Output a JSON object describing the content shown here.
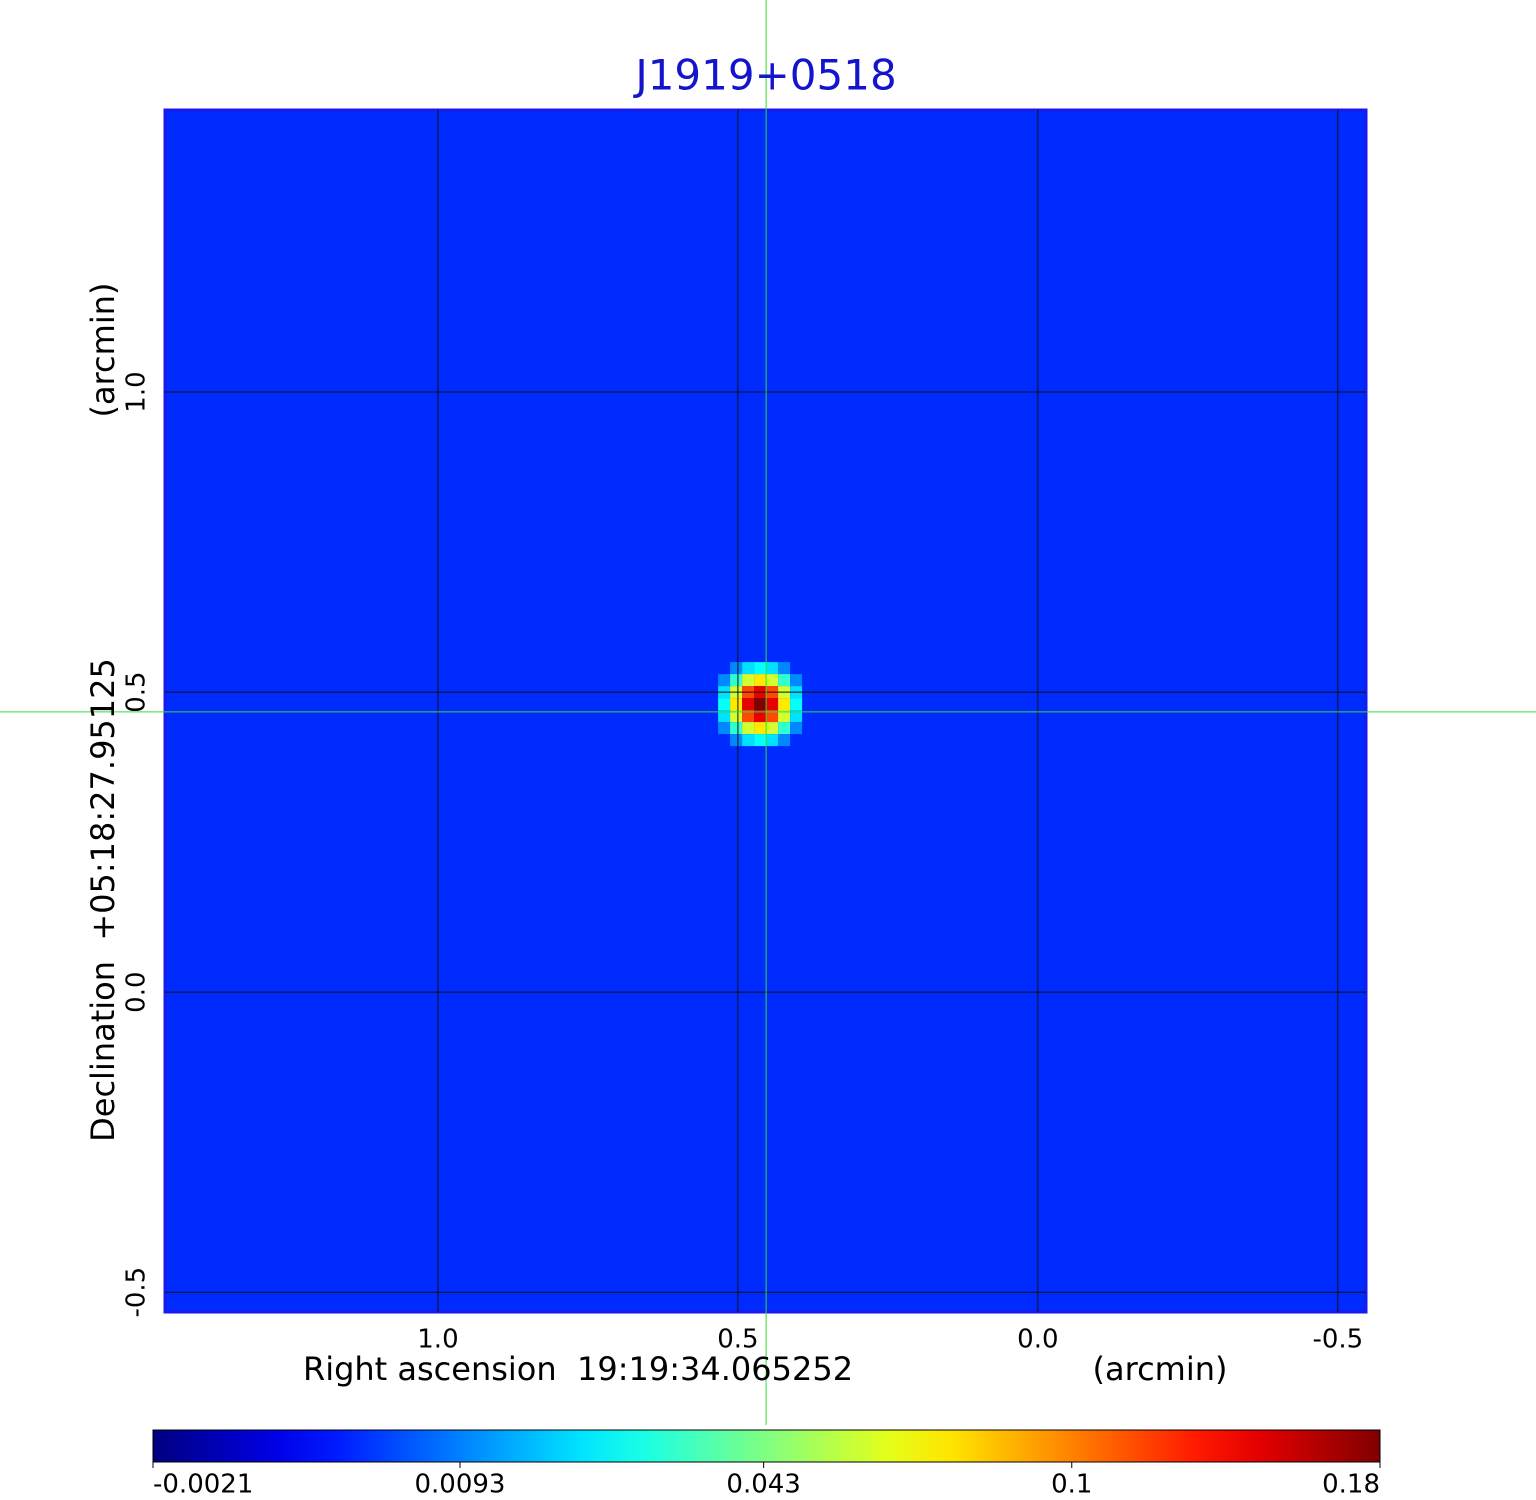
{
  "chart_data": {
    "type": "image",
    "title": "J1919+0518",
    "x_label": "Right ascension  19:19:34.065252",
    "x_unit": "(arcmin)",
    "y_label": "Declination  +05:18:27.95125",
    "y_unit": "(arcmin)",
    "xlim": [
      1.455,
      -0.547
    ],
    "ylim": [
      -0.533,
      1.47
    ],
    "xticks": [
      {
        "value": 1,
        "label": "1.0"
      },
      {
        "value": 0.5,
        "label": "0.5"
      },
      {
        "value": 0,
        "label": "0.0"
      },
      {
        "value": -0.5,
        "label": "-0.5"
      }
    ],
    "yticks": [
      {
        "value": 1,
        "label": "1.0"
      },
      {
        "value": 0.5,
        "label": "0.5"
      },
      {
        "value": 0,
        "label": "0.0"
      },
      {
        "value": -0.5,
        "label": "-0.5"
      }
    ],
    "grid": true,
    "colormap": "jet",
    "colorbar_scale": "sqrt",
    "clim": [
      -0.0021,
      0.18
    ],
    "colorbar_ticks": [
      -0.0021,
      0.0093,
      0.043,
      0.1,
      0.18
    ],
    "background_level": 0.003,
    "source": {
      "x": 0.453,
      "y": 0.47,
      "peak": 0.18,
      "beam_sigma_arcmin": 0.03
    },
    "crosshair": {
      "x": 0.453,
      "y": 0.467,
      "color": "#33dd33"
    }
  }
}
